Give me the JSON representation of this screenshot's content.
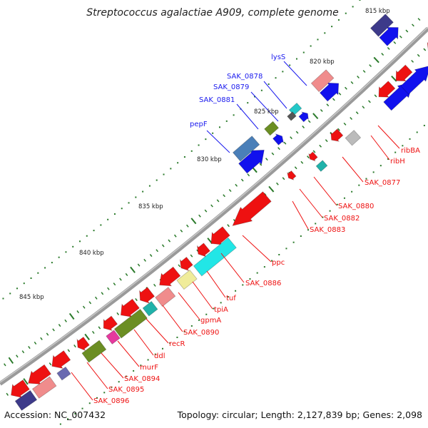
{
  "title": "Streptococcus agalactiae A909, complete genome",
  "footer": {
    "accession": "Accession: NC_007432",
    "summary": "Topology: circular; Length: 2,127,839 bp; Genes: 2,098"
  },
  "colors": {
    "backbone": "#7a7a7a",
    "label_upper": "#1a1aee",
    "label_lower": "#ee1111",
    "tick": "#2a7a2a"
  },
  "ticks": [
    "815 kbp",
    "820 kbp",
    "825 kbp",
    "830 kbp",
    "835 kbp",
    "840 kbp",
    "845 kbp"
  ],
  "labels_upper": [
    "lysS",
    "SAK_0878",
    "SAK_0879",
    "SAK_0881",
    "pepF"
  ],
  "labels_lower": [
    "ribBA",
    "ribH",
    "SAK_0877",
    "SAK_0880",
    "SAK_0882",
    "SAK_0883",
    "ppc",
    "SAK_0886",
    "tuf",
    "tpiA",
    "gpmA",
    "SAK_0890",
    "recR",
    "ddl",
    "murF",
    "SAK_0894",
    "SAK_0895",
    "SAK_0896"
  ]
}
